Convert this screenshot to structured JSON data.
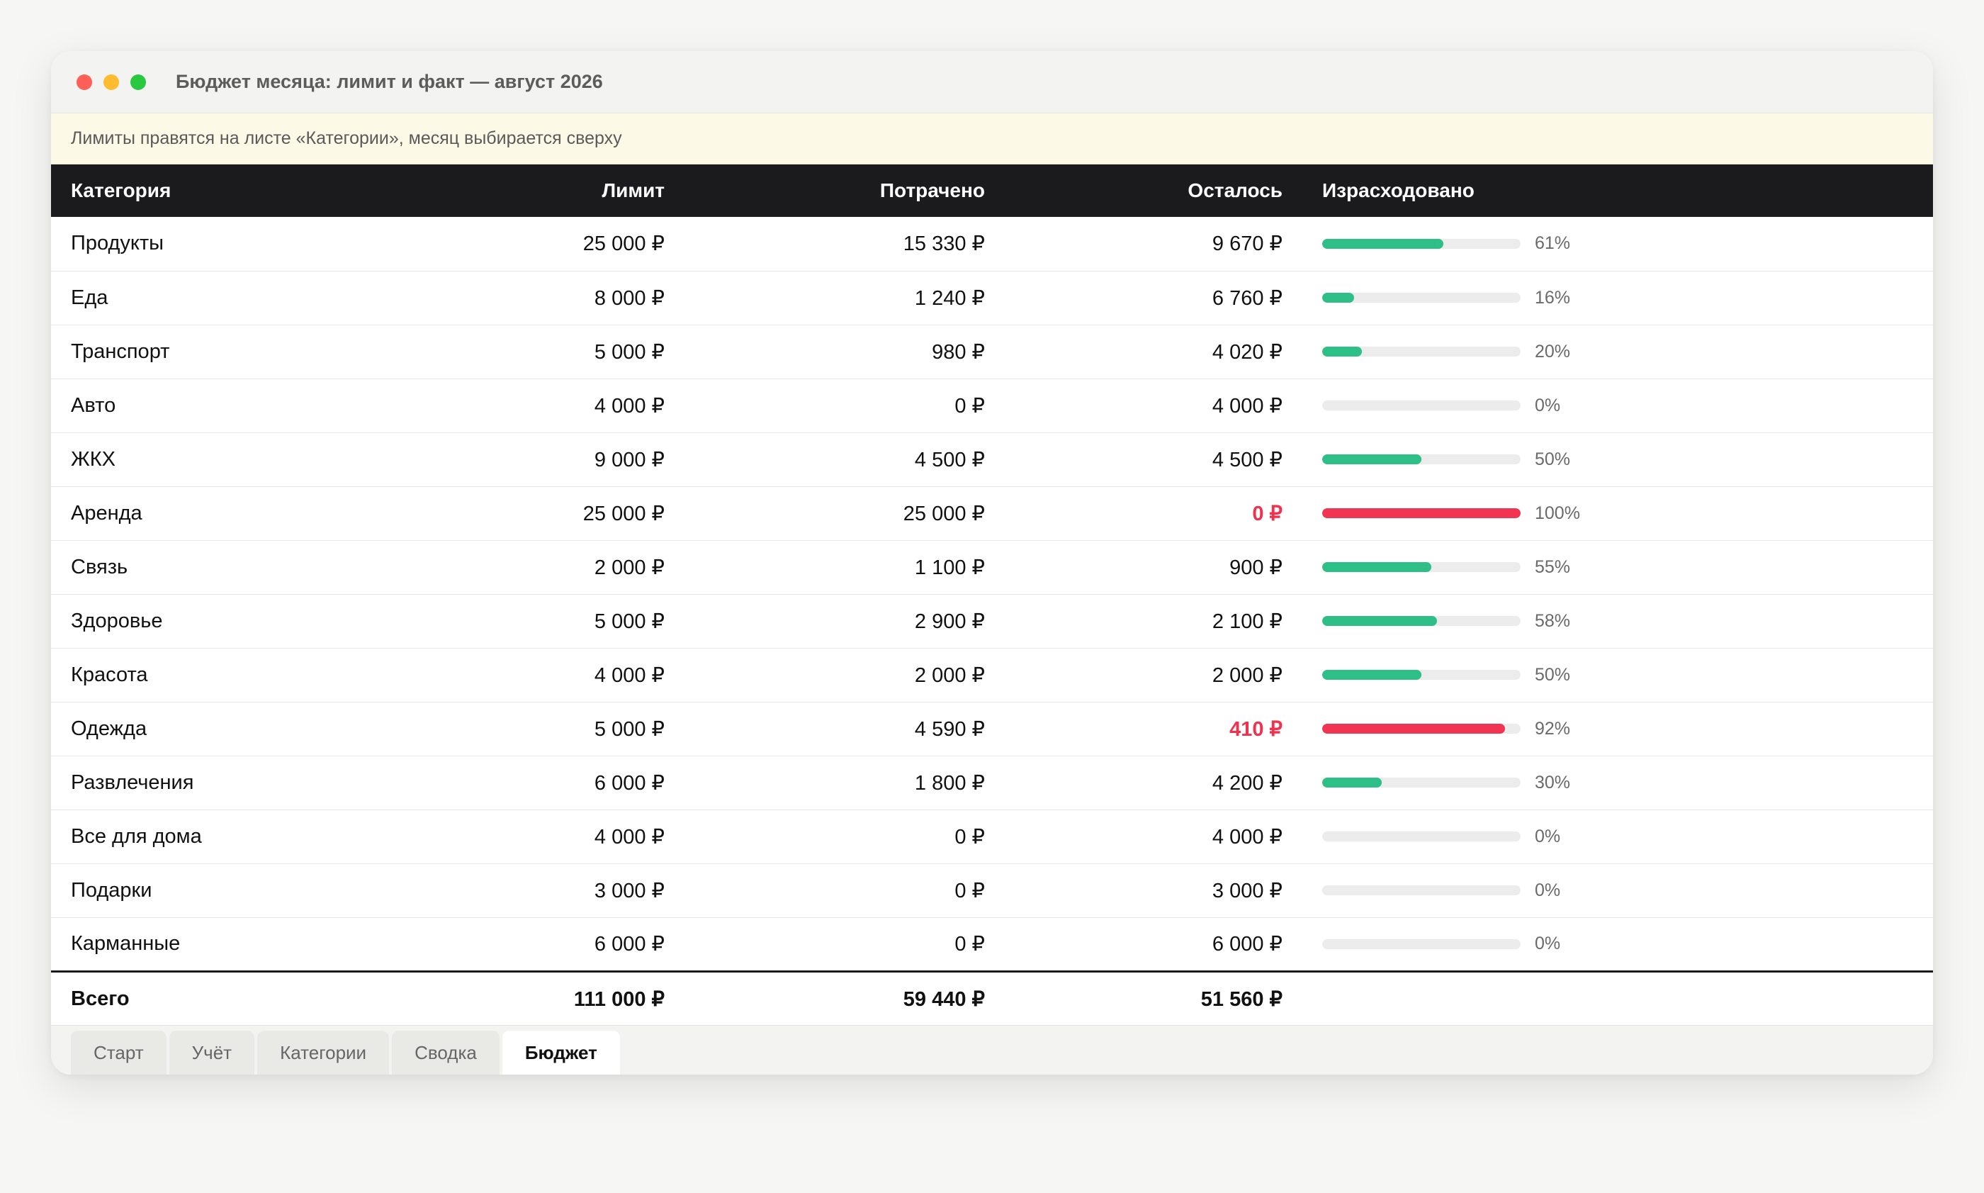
{
  "window": {
    "title": "Бюджет месяца: лимит и факт — август 2026"
  },
  "notice": "Лимиты правятся на листе «Категории», месяц выбирается сверху",
  "colors": {
    "ok": "#2dbf87",
    "over": "#f03452",
    "header_bg": "#1b1b1d"
  },
  "table": {
    "headers": {
      "category": "Категория",
      "limit": "Лимит",
      "spent": "Потрачено",
      "remaining": "Осталось",
      "used": "Израсходовано"
    },
    "rows": [
      {
        "category": "Продукты",
        "limit": "25 000 ₽",
        "spent": "15 330 ₽",
        "remaining": "9 670 ₽",
        "used_pct": 61,
        "used_label": "61%",
        "over": false
      },
      {
        "category": "Еда",
        "limit": "8 000 ₽",
        "spent": "1 240 ₽",
        "remaining": "6 760 ₽",
        "used_pct": 16,
        "used_label": "16%",
        "over": false
      },
      {
        "category": "Транспорт",
        "limit": "5 000 ₽",
        "spent": "980 ₽",
        "remaining": "4 020 ₽",
        "used_pct": 20,
        "used_label": "20%",
        "over": false
      },
      {
        "category": "Авто",
        "limit": "4 000 ₽",
        "spent": "0 ₽",
        "remaining": "4 000 ₽",
        "used_pct": 0,
        "used_label": "0%",
        "over": false
      },
      {
        "category": "ЖКХ",
        "limit": "9 000 ₽",
        "spent": "4 500 ₽",
        "remaining": "4 500 ₽",
        "used_pct": 50,
        "used_label": "50%",
        "over": false
      },
      {
        "category": "Аренда",
        "limit": "25 000 ₽",
        "spent": "25 000 ₽",
        "remaining": "0 ₽",
        "used_pct": 100,
        "used_label": "100%",
        "over": true
      },
      {
        "category": "Связь",
        "limit": "2 000 ₽",
        "spent": "1 100 ₽",
        "remaining": "900 ₽",
        "used_pct": 55,
        "used_label": "55%",
        "over": false
      },
      {
        "category": "Здоровье",
        "limit": "5 000 ₽",
        "spent": "2 900 ₽",
        "remaining": "2 100 ₽",
        "used_pct": 58,
        "used_label": "58%",
        "over": false
      },
      {
        "category": "Красота",
        "limit": "4 000 ₽",
        "spent": "2 000 ₽",
        "remaining": "2 000 ₽",
        "used_pct": 50,
        "used_label": "50%",
        "over": false
      },
      {
        "category": "Одежда",
        "limit": "5 000 ₽",
        "spent": "4 590 ₽",
        "remaining": "410 ₽",
        "used_pct": 92,
        "used_label": "92%",
        "over": true
      },
      {
        "category": "Развлечения",
        "limit": "6 000 ₽",
        "spent": "1 800 ₽",
        "remaining": "4 200 ₽",
        "used_pct": 30,
        "used_label": "30%",
        "over": false
      },
      {
        "category": "Все для дома",
        "limit": "4 000 ₽",
        "spent": "0 ₽",
        "remaining": "4 000 ₽",
        "used_pct": 0,
        "used_label": "0%",
        "over": false
      },
      {
        "category": "Подарки",
        "limit": "3 000 ₽",
        "spent": "0 ₽",
        "remaining": "3 000 ₽",
        "used_pct": 0,
        "used_label": "0%",
        "over": false
      },
      {
        "category": "Карманные",
        "limit": "6 000 ₽",
        "spent": "0 ₽",
        "remaining": "6 000 ₽",
        "used_pct": 0,
        "used_label": "0%",
        "over": false
      }
    ],
    "total": {
      "label": "Всего",
      "limit": "111 000 ₽",
      "spent": "59 440 ₽",
      "remaining": "51 560 ₽"
    }
  },
  "tabs": [
    {
      "label": "Старт",
      "active": false
    },
    {
      "label": "Учёт",
      "active": false
    },
    {
      "label": "Категории",
      "active": false
    },
    {
      "label": "Сводка",
      "active": false
    },
    {
      "label": "Бюджет",
      "active": true
    }
  ]
}
